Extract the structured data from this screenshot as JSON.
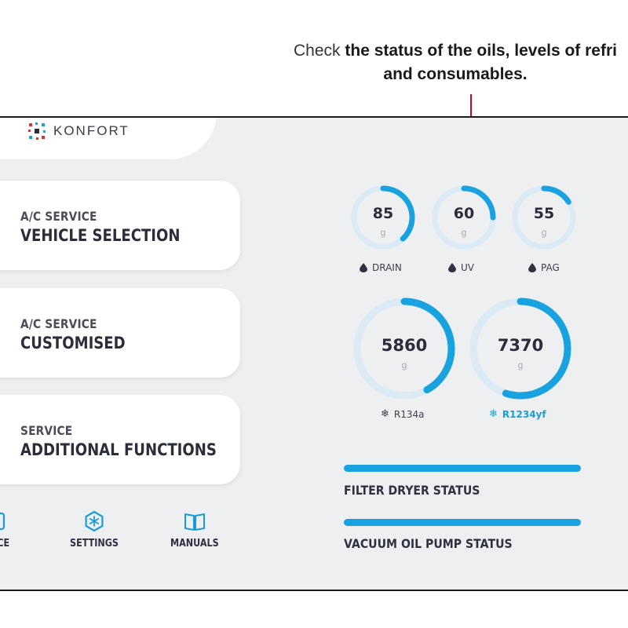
{
  "callout": {
    "prefix": "Check",
    "bold_line1": "the status of the oils, levels of refri",
    "bold_line2": "and consumables."
  },
  "logo": {
    "text": "KONFORT",
    "icon": "konfort-logo-icon"
  },
  "menu": [
    {
      "sub": "A/C SERVICE",
      "main": "VEHICLE SELECTION"
    },
    {
      "sub": "A/C SERVICE",
      "main": "CUSTOMISED"
    },
    {
      "sub": "SERVICE",
      "main": "ADDITIONAL FUNCTIONS"
    }
  ],
  "bottom_nav": [
    {
      "label": "CE",
      "icon": "maintenance-icon"
    },
    {
      "label": "SETTINGS",
      "icon": "gear-icon"
    },
    {
      "label": "MANUALS",
      "icon": "manual-book-icon"
    }
  ],
  "oil_gauges": [
    {
      "value": "85",
      "unit": "g",
      "label": "DRAIN",
      "icon": "drop-icon",
      "level": 0.38
    },
    {
      "value": "60",
      "unit": "g",
      "label": "UV",
      "icon": "drop-icon",
      "level": 0.25
    },
    {
      "value": "55",
      "unit": "g",
      "label": "PAG",
      "icon": "drop-icon",
      "level": 0.16
    }
  ],
  "refrigerant_gauges": [
    {
      "value": "5860",
      "unit": "g",
      "label": "R134a",
      "icon": "snowflake-icon",
      "level": 0.42,
      "active": false
    },
    {
      "value": "7370",
      "unit": "g",
      "label": "R1234yf",
      "icon": "snowflake-icon",
      "level": 0.55,
      "active": true
    }
  ],
  "status_bars": [
    {
      "label": "FILTER DRYER STATUS",
      "level": 1.0
    },
    {
      "label": "VACUUM OIL PUMP STATUS",
      "level": 1.0
    }
  ],
  "colors": {
    "accent": "#18a3e0",
    "track": "#dbeaf4",
    "callout_line": "#d0021b",
    "screen_bg": "#eeeff1"
  }
}
